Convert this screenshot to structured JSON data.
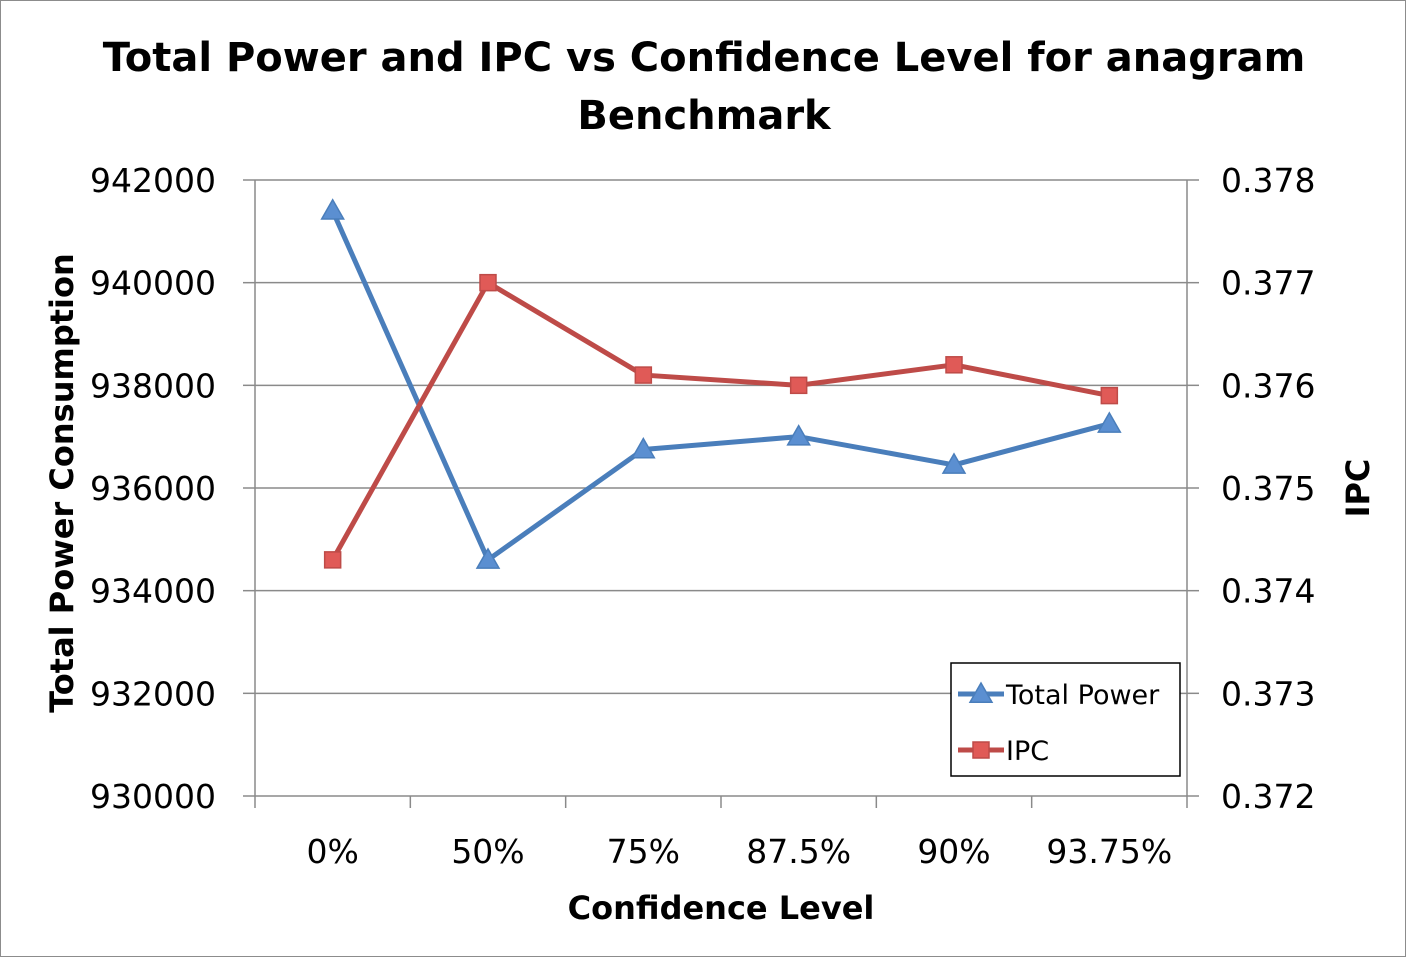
{
  "chart_data": {
    "type": "line",
    "title_lines": [
      "Total Power and IPC vs Confidence Level for anagram",
      "Benchmark"
    ],
    "xlabel": "Confidence Level",
    "ylabel_left": "Total Power Consumption",
    "ylabel_right": "IPC",
    "categories": [
      "0%",
      "50%",
      "75%",
      "87.5%",
      "90%",
      "93.75%"
    ],
    "y_left": {
      "lim": [
        930000,
        942000
      ],
      "ticks": [
        "942000",
        "940000",
        "938000",
        "936000",
        "934000",
        "932000",
        "930000"
      ],
      "tick_values": [
        942000,
        940000,
        938000,
        936000,
        934000,
        932000,
        930000
      ]
    },
    "y_right": {
      "lim": [
        0.372,
        0.378
      ],
      "ticks": [
        "0.378",
        "0.377",
        "0.376",
        "0.375",
        "0.374",
        "0.373",
        "0.372"
      ],
      "tick_values": [
        0.378,
        0.377,
        0.376,
        0.375,
        0.374,
        0.373,
        0.372
      ]
    },
    "series": [
      {
        "name": "Total Power",
        "axis": "left",
        "marker": "triangle",
        "color": "#4a7ebb",
        "marker_fill": "#5b8fd1",
        "values": [
          941400,
          934600,
          936750,
          937000,
          936450,
          937250
        ]
      },
      {
        "name": "IPC",
        "axis": "right",
        "marker": "square",
        "color": "#be4b48",
        "marker_fill": "#e05a57",
        "values": [
          0.3743,
          0.377,
          0.3761,
          0.376,
          0.3762,
          0.3759
        ]
      }
    ],
    "grid": true,
    "legend_position": "bottom-right inside plot"
  }
}
